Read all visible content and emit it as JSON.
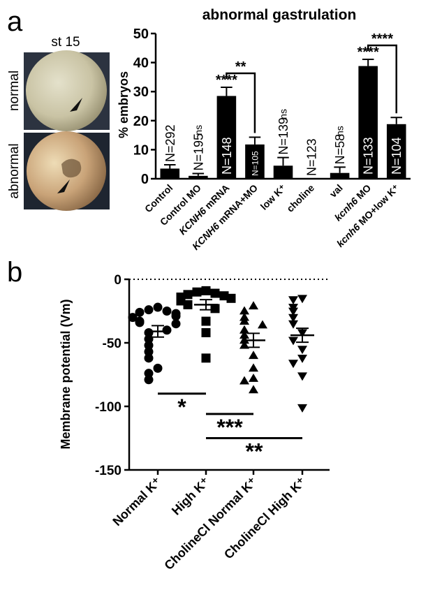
{
  "panel_a": {
    "letter": "a",
    "photo_title": "st 15",
    "photo_labels": [
      "normal",
      "abnormal"
    ]
  },
  "panel_b": {
    "letter": "b"
  },
  "chart_data": [
    {
      "type": "bar",
      "title": "abnormal gastrulation",
      "ylabel": "% embryos",
      "ylim": [
        0,
        50
      ],
      "yticks": [
        0,
        10,
        20,
        30,
        40,
        50
      ],
      "categories": [
        "Control",
        "Control MO",
        "KCNH6 mRNA",
        "KCNH6 mRNA+MO",
        "low K⁺",
        "choline",
        "val",
        "kcnh6 MO",
        "kcnh6 MO+low K⁺"
      ],
      "category_italic_prefix": [
        "",
        "",
        "KCNH6",
        "KCNH6",
        "",
        "",
        "",
        "kcnh6",
        "kcnh6"
      ],
      "values": [
        3.5,
        1.0,
        28.5,
        11.8,
        4.5,
        0.0,
        2.0,
        38.8,
        18.8
      ],
      "errors": [
        1.3,
        0.8,
        3.0,
        2.5,
        2.8,
        0.0,
        2.0,
        2.3,
        2.3
      ],
      "n_labels": [
        "N=292",
        "N=195",
        "N=148",
        "N=105",
        "N=139",
        "N=123",
        "N=58",
        "N=133",
        "N=104"
      ],
      "sig_labels": [
        "",
        "ns",
        "****",
        "",
        "ns",
        "",
        "ns",
        "****",
        ""
      ],
      "brackets": [
        {
          "from": 2,
          "to": 3,
          "label": "**"
        },
        {
          "from": 7,
          "to": 8,
          "label": "****"
        }
      ],
      "bar_color": "#000000"
    },
    {
      "type": "scatter",
      "ylabel": "Membrane potential (Vm)",
      "ylim": [
        -150,
        0
      ],
      "yticks": [
        0,
        -50,
        -100,
        -150
      ],
      "categories": [
        "Normal K⁺",
        "High K⁺",
        "CholineCl Normal K⁺",
        "CholineCl High K⁺"
      ],
      "marker_shapes": [
        "circle",
        "square",
        "triangle-up",
        "triangle-down"
      ],
      "series": [
        {
          "values": [
            -22,
            -24,
            -25,
            -26,
            -27,
            -29,
            -30,
            -33,
            -34,
            -35,
            -40,
            -42,
            -47,
            -52,
            -57,
            -62,
            -70,
            -74,
            -79
          ]
        },
        {
          "values": [
            -9,
            -10,
            -11,
            -12,
            -13,
            -14,
            -15,
            -17,
            -20,
            -23,
            -33,
            -42,
            -62
          ]
        },
        {
          "values": [
            -21,
            -25,
            -30,
            -33,
            -36,
            -40,
            -44,
            -48,
            -52,
            -60,
            -70,
            -78,
            -80,
            -87
          ]
        },
        {
          "values": [
            -15,
            -16,
            -22,
            -25,
            -30,
            -35,
            -42,
            -48,
            -55,
            -62,
            -66,
            -76,
            -101
          ]
        }
      ],
      "means": [
        -41,
        -20,
        -48,
        -44
      ],
      "sems": [
        4.5,
        4.0,
        5.5,
        5.5
      ],
      "significance": [
        {
          "from": 0,
          "to": 1,
          "label": "*"
        },
        {
          "from": 1,
          "to": 2,
          "label": "***"
        },
        {
          "from": 1,
          "to": 3,
          "label": "**"
        }
      ],
      "reference_line_y": 0
    }
  ]
}
